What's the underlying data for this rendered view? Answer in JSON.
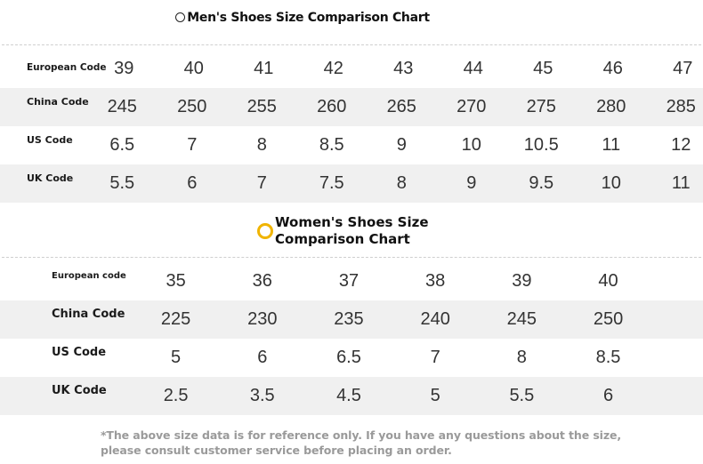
{
  "men": {
    "title": "Men's Shoes Size Comparison Chart",
    "rows": [
      {
        "label": "European Code",
        "values": [
          "39",
          "40",
          "41",
          "42",
          "43",
          "44",
          "45",
          "46",
          "47"
        ]
      },
      {
        "label": "China Code",
        "values": [
          "245",
          "250",
          "255",
          "260",
          "265",
          "270",
          "275",
          "280",
          "285"
        ]
      },
      {
        "label": "US Code",
        "values": [
          "6.5",
          "7",
          "8",
          "8.5",
          "9",
          "10",
          "10.5",
          "11",
          "12"
        ]
      },
      {
        "label": "UK Code",
        "values": [
          "5.5",
          "6",
          "7",
          "7.5",
          "8",
          "9",
          "9.5",
          "10",
          "11"
        ]
      }
    ]
  },
  "women": {
    "title_line1": "Women's Shoes Size",
    "title_line2": "Comparison Chart",
    "rows": [
      {
        "label": "European code",
        "values": [
          "35",
          "36",
          "37",
          "38",
          "39",
          "40"
        ]
      },
      {
        "label": "China Code",
        "values": [
          "225",
          "230",
          "235",
          "240",
          "245",
          "250"
        ]
      },
      {
        "label": "US Code",
        "values": [
          "5",
          "6",
          "6.5",
          "7",
          "8",
          "8.5"
        ]
      },
      {
        "label": "UK Code",
        "values": [
          "2.5",
          "3.5",
          "4.5",
          "5",
          "5.5",
          "6"
        ]
      }
    ]
  },
  "footnote": {
    "line1": "*The above size data is for reference only. If you have any questions about the size,",
    "line2": "please consult customer service before placing an order."
  },
  "colors": {
    "row_shade": "#f0f0f0",
    "ring": "#f0b400",
    "note": "#9a9a9a"
  },
  "icons": {
    "men_title": "circle-outline-icon",
    "women_title": "yellow-ring-icon"
  }
}
